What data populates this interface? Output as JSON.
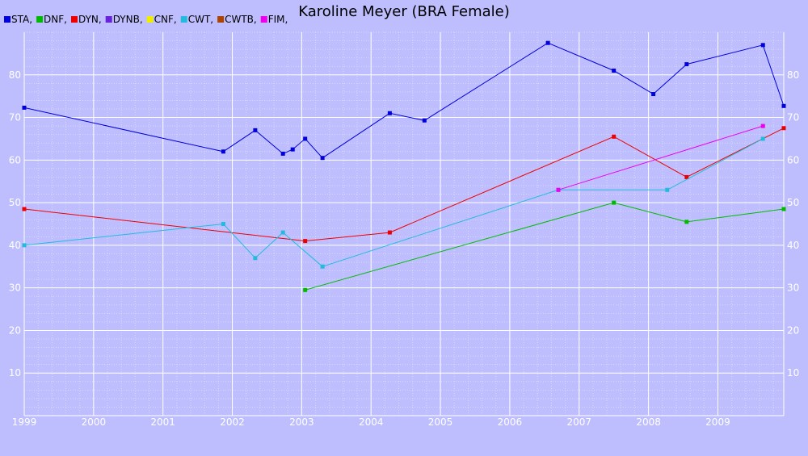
{
  "chart_data": {
    "type": "line",
    "title": "Karoline Meyer (BRA Female)",
    "xlabel": "",
    "ylabel": "",
    "xlim": [
      1999.0,
      2009.95
    ],
    "ylim": [
      0,
      90
    ],
    "x_ticks": [
      "1999",
      "2000",
      "2001",
      "2002",
      "2003",
      "2004",
      "2005",
      "2006",
      "2007",
      "2008",
      "2009"
    ],
    "y_ticks": [
      "10",
      "20",
      "30",
      "40",
      "50",
      "60",
      "70",
      "80"
    ],
    "grid": true,
    "legend_position": "top-left",
    "legend": [
      {
        "label": "STA,",
        "color": "#0000dd"
      },
      {
        "label": "DNF,",
        "color": "#00bb00"
      },
      {
        "label": "DYN,",
        "color": "#ee0000"
      },
      {
        "label": "DYNB,",
        "color": "#6622dd"
      },
      {
        "label": "CNF,",
        "color": "#eeee00"
      },
      {
        "label": "CWT,",
        "color": "#22bbdd"
      },
      {
        "label": "CWTB,",
        "color": "#aa4400"
      },
      {
        "label": "FIM,",
        "color": "#ee00ee"
      }
    ],
    "series": [
      {
        "name": "STA",
        "color": "#0000dd",
        "points": [
          [
            1999.0,
            72.3
          ],
          [
            2001.87,
            62.0
          ],
          [
            2002.33,
            67.0
          ],
          [
            2002.73,
            61.5
          ],
          [
            2002.87,
            62.5
          ],
          [
            2003.05,
            65.0
          ],
          [
            2003.3,
            60.5
          ],
          [
            2004.27,
            71.0
          ],
          [
            2004.77,
            69.3
          ],
          [
            2006.55,
            87.5
          ],
          [
            2007.5,
            81.0
          ],
          [
            2008.07,
            75.5
          ],
          [
            2008.55,
            82.5
          ],
          [
            2009.65,
            87.0
          ],
          [
            2009.95,
            72.7
          ]
        ]
      },
      {
        "name": "DNF",
        "color": "#00bb00",
        "points": [
          [
            2003.05,
            29.5
          ],
          [
            2007.5,
            50.0
          ],
          [
            2008.55,
            45.5
          ],
          [
            2009.95,
            48.5
          ]
        ]
      },
      {
        "name": "DYN",
        "color": "#ee0000",
        "points": [
          [
            1999.0,
            48.5
          ],
          [
            2003.05,
            41.0
          ],
          [
            2004.27,
            43.0
          ],
          [
            2007.5,
            65.5
          ],
          [
            2008.55,
            56.0
          ],
          [
            2009.95,
            67.5
          ]
        ]
      },
      {
        "name": "CWT",
        "color": "#22bbdd",
        "points": [
          [
            1999.0,
            40.0
          ],
          [
            2001.87,
            45.0
          ],
          [
            2002.33,
            37.0
          ],
          [
            2002.73,
            43.0
          ],
          [
            2003.3,
            35.0
          ],
          [
            2006.7,
            53.0
          ],
          [
            2008.27,
            53.0
          ],
          [
            2009.65,
            65.0
          ]
        ]
      },
      {
        "name": "FIM",
        "color": "#ee00ee",
        "points": [
          [
            2006.7,
            53.0
          ],
          [
            2009.65,
            68.0
          ]
        ]
      }
    ]
  }
}
